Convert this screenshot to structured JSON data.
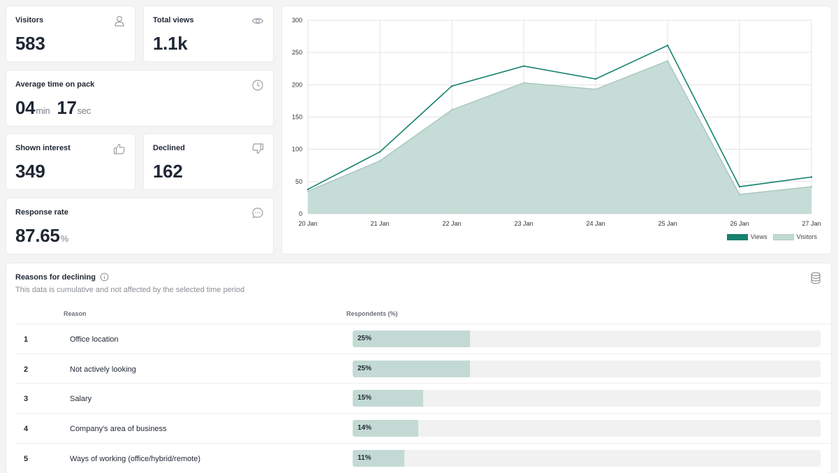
{
  "stats": {
    "visitors": {
      "label": "Visitors",
      "value": "583",
      "icon": "person-icon"
    },
    "total_views": {
      "label": "Total views",
      "value": "1.1k",
      "icon": "eye-icon"
    },
    "avg_time": {
      "label": "Average time on pack",
      "minutes": "04",
      "min_unit": "min",
      "seconds": "17",
      "sec_unit": "sec",
      "icon": "clock-icon"
    },
    "shown_interest": {
      "label": "Shown interest",
      "value": "349",
      "icon": "thumbs-up-icon"
    },
    "declined": {
      "label": "Declined",
      "value": "162",
      "icon": "thumbs-down-icon"
    },
    "response_rate": {
      "label": "Response rate",
      "value": "87.65",
      "unit": "%",
      "icon": "chat-bubble-icon"
    }
  },
  "chart_data": {
    "type": "area",
    "categories": [
      "20 Jan",
      "21 Jan",
      "22 Jan",
      "23 Jan",
      "24 Jan",
      "25 Jan",
      "26 Jan",
      "27 Jan"
    ],
    "series": [
      {
        "name": "Views",
        "values": [
          38,
          96,
          198,
          229,
          209,
          261,
          42,
          57
        ],
        "color": "#17826e",
        "style": "line"
      },
      {
        "name": "Visitors",
        "values": [
          35,
          82,
          161,
          203,
          193,
          237,
          30,
          42
        ],
        "color": "#c3dad4",
        "style": "area"
      }
    ],
    "yticks": [
      0,
      50,
      100,
      150,
      200,
      250,
      300
    ],
    "ylim": [
      0,
      300
    ],
    "grid": true,
    "legend": "bottom-right"
  },
  "declining": {
    "title": "Reasons for declining",
    "subtitle": "This data is cumulative and not affected by the selected time period",
    "col_reason": "Reason",
    "col_respondents": "Respondents (%)",
    "rows": [
      {
        "num": "1",
        "reason": "Office location",
        "percent": 25,
        "pct_label": "25%"
      },
      {
        "num": "2",
        "reason": "Not actively looking",
        "percent": 25,
        "pct_label": "25%"
      },
      {
        "num": "3",
        "reason": "Salary",
        "percent": 15,
        "pct_label": "15%"
      },
      {
        "num": "4",
        "reason": "Company's area of business",
        "percent": 14,
        "pct_label": "14%"
      },
      {
        "num": "5",
        "reason": "Ways of working (office/hybrid/remote)",
        "percent": 11,
        "pct_label": "11%"
      }
    ]
  }
}
